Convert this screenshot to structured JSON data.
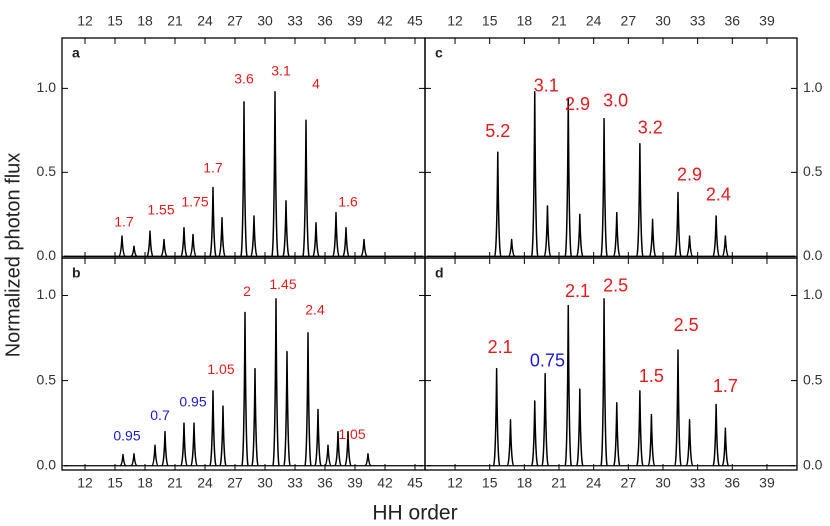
{
  "figure": {
    "xlabel": "HH order",
    "ylabel": "Normalized photon flux"
  },
  "chart_data": [
    {
      "type": "spectrum",
      "title": "a",
      "xlim": [
        9.7,
        46
      ],
      "ylim": [
        -0.01,
        1.3
      ],
      "xticks": [
        12,
        15,
        18,
        21,
        24,
        27,
        30,
        33,
        36,
        39,
        42,
        45
      ],
      "yticks": [
        {
          "value": 0,
          "label": "0.0"
        },
        {
          "value": 0.5,
          "label": "0.5"
        },
        {
          "value": 1,
          "label": "1.0"
        }
      ],
      "series": [
        {
          "color": "#000000",
          "x": [
            15.7,
            16.9,
            18.5,
            19.9,
            21.9,
            22.8,
            24.8,
            25.7,
            27.9,
            28.9,
            31.0,
            32.1,
            34.1,
            35.1,
            37.1,
            38.1,
            39.9
          ],
          "values": [
            0.12,
            0.06,
            0.15,
            0.1,
            0.17,
            0.13,
            0.41,
            0.23,
            0.92,
            0.24,
            0.98,
            0.33,
            0.81,
            0.2,
            0.26,
            0.17,
            0.1
          ]
        }
      ],
      "annotations": [
        {
          "text": "1.7",
          "x": 15.9,
          "y": 0.2,
          "color": "#e31a1c"
        },
        {
          "text": "1.55",
          "x": 19.6,
          "y": 0.27,
          "color": "#e31a1c"
        },
        {
          "text": "1.75",
          "x": 23.0,
          "y": 0.32,
          "color": "#e31a1c"
        },
        {
          "text": "1.7",
          "x": 24.8,
          "y": 0.52,
          "color": "#e31a1c"
        },
        {
          "text": "3.6",
          "x": 27.9,
          "y": 1.05,
          "color": "#e31a1c"
        },
        {
          "text": "3.1",
          "x": 31.6,
          "y": 1.1,
          "color": "#e31a1c"
        },
        {
          "text": "4",
          "x": 35.1,
          "y": 1.02,
          "color": "#e31a1c"
        },
        {
          "text": "1.6",
          "x": 38.3,
          "y": 0.32,
          "color": "#e31a1c"
        }
      ]
    },
    {
      "type": "spectrum",
      "title": "b",
      "xlim": [
        9.7,
        46
      ],
      "ylim": [
        -0.025,
        1.22
      ],
      "xticks": [
        12,
        15,
        18,
        21,
        24,
        27,
        30,
        33,
        36,
        39,
        42,
        45
      ],
      "yticks": [
        {
          "value": 0,
          "label": "0.0"
        },
        {
          "value": 0.5,
          "label": "0.5"
        },
        {
          "value": 1,
          "label": "1.0"
        }
      ],
      "series": [
        {
          "color": "#000000",
          "x": [
            15.8,
            16.9,
            19.0,
            20.0,
            21.9,
            22.9,
            24.8,
            25.8,
            28.0,
            29.0,
            31.1,
            32.2,
            34.3,
            35.3,
            36.3,
            37.3,
            38.3,
            40.3
          ],
          "values": [
            0.065,
            0.07,
            0.12,
            0.2,
            0.25,
            0.25,
            0.44,
            0.35,
            0.9,
            0.57,
            0.98,
            0.67,
            0.78,
            0.33,
            0.12,
            0.2,
            0.2,
            0.07
          ]
        }
      ],
      "annotations": [
        {
          "text": "0.95",
          "x": 16.2,
          "y": 0.17,
          "color": "#1a1ad6"
        },
        {
          "text": "0.7",
          "x": 19.5,
          "y": 0.29,
          "color": "#1a1ad6"
        },
        {
          "text": "0.95",
          "x": 22.8,
          "y": 0.37,
          "color": "#1a1ad6"
        },
        {
          "text": "1.05",
          "x": 25.6,
          "y": 0.56,
          "color": "#e31a1c"
        },
        {
          "text": "2",
          "x": 28.2,
          "y": 1.02,
          "color": "#e31a1c"
        },
        {
          "text": "1.45",
          "x": 31.8,
          "y": 1.06,
          "color": "#e31a1c"
        },
        {
          "text": "2.4",
          "x": 35.0,
          "y": 0.91,
          "color": "#e31a1c"
        },
        {
          "text": "1.05",
          "x": 38.7,
          "y": 0.18,
          "color": "#e31a1c"
        }
      ]
    },
    {
      "type": "spectrum",
      "title": "c",
      "xlim": [
        9.4,
        41.6
      ],
      "ylim": [
        -0.01,
        1.3
      ],
      "xticks": [
        12,
        15,
        18,
        21,
        24,
        27,
        30,
        33,
        36,
        39
      ],
      "yticks": [
        {
          "value": 0,
          "label": "0.0"
        },
        {
          "value": 0.5,
          "label": "0.5"
        },
        {
          "value": 1,
          "label": "1.0"
        }
      ],
      "series": [
        {
          "color": "#000000",
          "x": [
            15.7,
            16.9,
            18.9,
            20.0,
            21.8,
            22.8,
            24.9,
            26.0,
            28.0,
            29.1,
            31.3,
            32.3,
            34.6,
            35.4
          ],
          "values": [
            0.62,
            0.1,
            0.98,
            0.3,
            0.94,
            0.25,
            0.82,
            0.26,
            0.67,
            0.22,
            0.38,
            0.12,
            0.24,
            0.12
          ]
        }
      ],
      "annotations": [
        {
          "text": "5.2",
          "x": 15.7,
          "y": 0.74,
          "color": "#e31a1c"
        },
        {
          "text": "3.1",
          "x": 19.9,
          "y": 1.01,
          "color": "#e31a1c"
        },
        {
          "text": "2.9",
          "x": 22.6,
          "y": 0.9,
          "color": "#e31a1c"
        },
        {
          "text": "3.0",
          "x": 25.9,
          "y": 0.92,
          "color": "#e31a1c"
        },
        {
          "text": "3.2",
          "x": 28.9,
          "y": 0.76,
          "color": "#e31a1c"
        },
        {
          "text": "2.9",
          "x": 32.3,
          "y": 0.48,
          "color": "#e31a1c"
        },
        {
          "text": "2.4",
          "x": 34.8,
          "y": 0.36,
          "color": "#e31a1c"
        }
      ]
    },
    {
      "type": "spectrum",
      "title": "d",
      "xlim": [
        9.4,
        41.6
      ],
      "ylim": [
        -0.025,
        1.22
      ],
      "xticks": [
        12,
        15,
        18,
        21,
        24,
        27,
        30,
        33,
        36,
        39
      ],
      "yticks": [
        {
          "value": 0,
          "label": "0.0"
        },
        {
          "value": 0.5,
          "label": "0.5"
        },
        {
          "value": 1,
          "label": "1.0"
        }
      ],
      "series": [
        {
          "color": "#000000",
          "x": [
            15.6,
            16.8,
            18.9,
            19.8,
            21.8,
            22.8,
            24.9,
            26.0,
            28.0,
            29.0,
            31.3,
            32.3,
            34.6,
            35.4
          ],
          "values": [
            0.57,
            0.27,
            0.38,
            0.54,
            0.94,
            0.45,
            0.98,
            0.37,
            0.44,
            0.3,
            0.68,
            0.27,
            0.36,
            0.22
          ]
        }
      ],
      "annotations": [
        {
          "text": "2.1",
          "x": 15.9,
          "y": 0.69,
          "color": "#e31a1c"
        },
        {
          "text": "0.75",
          "x": 20.0,
          "y": 0.61,
          "color": "#1a1ad6"
        },
        {
          "text": "2.1",
          "x": 22.6,
          "y": 1.02,
          "color": "#e31a1c"
        },
        {
          "text": "2.5",
          "x": 25.9,
          "y": 1.05,
          "color": "#e31a1c"
        },
        {
          "text": "1.5",
          "x": 29.0,
          "y": 0.52,
          "color": "#e31a1c"
        },
        {
          "text": "2.5",
          "x": 32.0,
          "y": 0.82,
          "color": "#e31a1c"
        },
        {
          "text": "1.7",
          "x": 35.4,
          "y": 0.46,
          "color": "#e31a1c"
        }
      ]
    }
  ]
}
